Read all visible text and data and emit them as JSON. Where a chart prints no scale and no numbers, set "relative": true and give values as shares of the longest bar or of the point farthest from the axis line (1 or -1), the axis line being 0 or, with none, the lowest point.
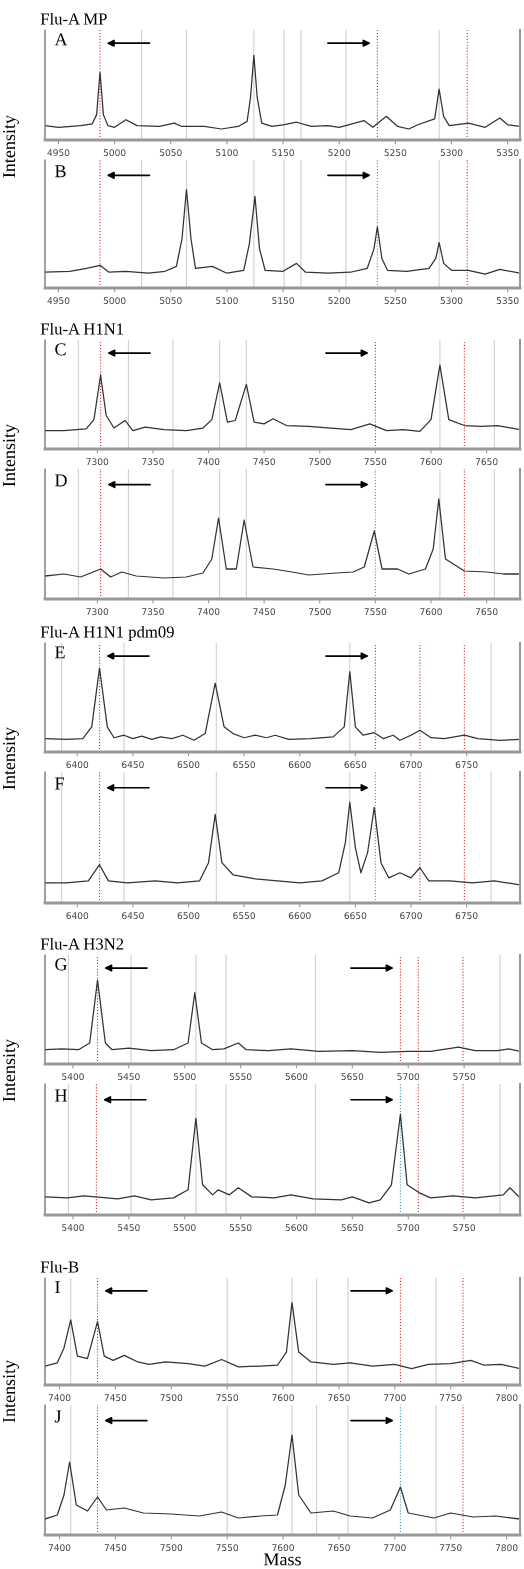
{
  "chart_data": [
    {
      "type": "line",
      "title": "Flu-A MP",
      "ylabel": "Intensity",
      "relative": true,
      "tick_labels": "x",
      "grid": false,
      "marker": "none",
      "line_style": "solid",
      "annotations": [
        "A"
      ],
      "xlim": [
        4938,
        5361
      ],
      "xticks": [
        4950,
        5000,
        5050,
        5100,
        5150,
        5200,
        5250,
        5300,
        5350
      ],
      "ref_lines": [
        {
          "axis": "x",
          "value": 4987,
          "color": "#d03030",
          "line_style": "dotted"
        },
        {
          "axis": "x",
          "value": 5234,
          "color": "#d03030",
          "line_style": "dotted"
        },
        {
          "axis": "x",
          "value": 5314,
          "color": "#d03030",
          "line_style": "dotted"
        },
        {
          "axis": "x",
          "value": 5024,
          "color": "#d0d0d0",
          "line_style": "solid"
        },
        {
          "axis": "x",
          "value": 5064,
          "color": "#d0d0d0",
          "line_style": "solid"
        },
        {
          "axis": "x",
          "value": 5124,
          "color": "#d0d0d0",
          "line_style": "solid"
        },
        {
          "axis": "x",
          "value": 5151,
          "color": "#d0d0d0",
          "line_style": "solid"
        },
        {
          "axis": "x",
          "value": 5166,
          "color": "#d0d0d0",
          "line_style": "solid"
        },
        {
          "axis": "x",
          "value": 5206,
          "color": "#d0d0d0",
          "line_style": "solid"
        },
        {
          "axis": "x",
          "value": 5289,
          "color": "#d0d0d0",
          "line_style": "solid"
        }
      ],
      "x": [
        4938,
        4950,
        4970,
        4980,
        4984,
        4987,
        4990,
        4994,
        5000,
        5010,
        5020,
        5040,
        5053,
        5060,
        5080,
        5095,
        5110,
        5118,
        5121,
        5124,
        5127,
        5131,
        5140,
        5150,
        5162,
        5175,
        5190,
        5200,
        5222,
        5230,
        5242,
        5252,
        5262,
        5270,
        5285,
        5289,
        5293,
        5298,
        5315,
        5330,
        5343,
        5350,
        5361
      ],
      "series": [
        {
          "color": "#333333",
          "values": [
            0.17,
            0.15,
            0.17,
            0.19,
            0.3,
            0.8,
            0.3,
            0.17,
            0.15,
            0.24,
            0.17,
            0.16,
            0.2,
            0.16,
            0.16,
            0.13,
            0.16,
            0.22,
            0.5,
            1.0,
            0.5,
            0.2,
            0.16,
            0.18,
            0.21,
            0.16,
            0.17,
            0.15,
            0.23,
            0.15,
            0.28,
            0.16,
            0.13,
            0.18,
            0.25,
            0.6,
            0.28,
            0.17,
            0.2,
            0.15,
            0.26,
            0.18,
            0.16
          ]
        }
      ]
    },
    {
      "type": "line",
      "relative": true,
      "tick_labels": "x",
      "grid": false,
      "marker": "none",
      "line_style": "solid",
      "annotations": [
        "B"
      ],
      "xlim": [
        4938,
        5361
      ],
      "xticks": [
        4950,
        5000,
        5050,
        5100,
        5150,
        5200,
        5250,
        5300,
        5350
      ],
      "ref_lines": [
        {
          "axis": "x",
          "value": 4987,
          "color": "#d03030",
          "line_style": "dotted"
        },
        {
          "axis": "x",
          "value": 5234,
          "color": "#40a0b0",
          "line_style": "dotted"
        },
        {
          "axis": "x",
          "value": 5314,
          "color": "#d03030",
          "line_style": "dotted"
        },
        {
          "axis": "x",
          "value": 5024,
          "color": "#d0d0d0",
          "line_style": "solid"
        },
        {
          "axis": "x",
          "value": 5064,
          "color": "#d0d0d0",
          "line_style": "solid"
        },
        {
          "axis": "x",
          "value": 5124,
          "color": "#d0d0d0",
          "line_style": "solid"
        },
        {
          "axis": "x",
          "value": 5151,
          "color": "#d0d0d0",
          "line_style": "solid"
        },
        {
          "axis": "x",
          "value": 5166,
          "color": "#d0d0d0",
          "line_style": "solid"
        },
        {
          "axis": "x",
          "value": 5206,
          "color": "#d0d0d0",
          "line_style": "solid"
        },
        {
          "axis": "x",
          "value": 5289,
          "color": "#d0d0d0",
          "line_style": "solid"
        }
      ],
      "x": [
        4938,
        4960,
        4975,
        4987,
        4995,
        5010,
        5030,
        5045,
        5055,
        5060,
        5064,
        5068,
        5072,
        5087,
        5100,
        5115,
        5120,
        5125,
        5129,
        5134,
        5150,
        5162,
        5170,
        5190,
        5210,
        5225,
        5231,
        5234,
        5238,
        5243,
        5260,
        5280,
        5286,
        5289,
        5293,
        5300,
        5315,
        5330,
        5343,
        5361
      ],
      "series": [
        {
          "color": "#333333",
          "values": [
            0.16,
            0.17,
            0.2,
            0.23,
            0.16,
            0.17,
            0.15,
            0.17,
            0.22,
            0.5,
            1.0,
            0.5,
            0.2,
            0.22,
            0.15,
            0.18,
            0.45,
            0.93,
            0.4,
            0.18,
            0.17,
            0.25,
            0.16,
            0.15,
            0.16,
            0.2,
            0.4,
            0.62,
            0.3,
            0.18,
            0.17,
            0.2,
            0.3,
            0.46,
            0.25,
            0.18,
            0.18,
            0.14,
            0.19,
            0.15
          ]
        }
      ]
    },
    {
      "type": "line",
      "title": "Flu-A H1N1",
      "ylabel": "Intensity",
      "relative": true,
      "tick_labels": "x",
      "grid": false,
      "marker": "none",
      "line_style": "solid",
      "annotations": [
        "C"
      ],
      "xlim": [
        7253,
        7680
      ],
      "xticks": [
        7300,
        7350,
        7400,
        7450,
        7500,
        7550,
        7600,
        7650
      ],
      "ref_lines": [
        {
          "axis": "x",
          "value": 7303,
          "color": "#d03030",
          "line_style": "dotted"
        },
        {
          "axis": "x",
          "value": 7550,
          "color": "#d03030",
          "line_style": "dotted"
        },
        {
          "axis": "x",
          "value": 7630,
          "color": "#d03030",
          "line_style": "dotted"
        },
        {
          "axis": "x",
          "value": 7283,
          "color": "#d0d0d0",
          "line_style": "solid"
        },
        {
          "axis": "x",
          "value": 7328,
          "color": "#d0d0d0",
          "line_style": "solid"
        },
        {
          "axis": "x",
          "value": 7368,
          "color": "#d0d0d0",
          "line_style": "solid"
        },
        {
          "axis": "x",
          "value": 7410,
          "color": "#d0d0d0",
          "line_style": "solid"
        },
        {
          "axis": "x",
          "value": 7434,
          "color": "#d0d0d0",
          "line_style": "solid"
        },
        {
          "axis": "x",
          "value": 7608,
          "color": "#d0d0d0",
          "line_style": "solid"
        },
        {
          "axis": "x",
          "value": 7657,
          "color": "#d0d0d0",
          "line_style": "solid"
        }
      ],
      "x": [
        7253,
        7270,
        7290,
        7297,
        7303,
        7308,
        7315,
        7325,
        7332,
        7343,
        7360,
        7380,
        7395,
        7403,
        7410,
        7417,
        7424,
        7434,
        7441,
        7450,
        7458,
        7470,
        7490,
        7510,
        7528,
        7545,
        7560,
        7575,
        7590,
        7600,
        7608,
        7616,
        7630,
        7645,
        7660,
        7680
      ],
      "series": [
        {
          "color": "#333333",
          "values": [
            0.22,
            0.22,
            0.24,
            0.35,
            0.88,
            0.4,
            0.25,
            0.34,
            0.22,
            0.26,
            0.23,
            0.22,
            0.25,
            0.35,
            0.79,
            0.32,
            0.34,
            0.77,
            0.32,
            0.3,
            0.36,
            0.28,
            0.27,
            0.25,
            0.23,
            0.3,
            0.22,
            0.23,
            0.21,
            0.35,
            1.0,
            0.35,
            0.28,
            0.27,
            0.28,
            0.23
          ]
        }
      ]
    },
    {
      "type": "line",
      "relative": true,
      "tick_labels": "x",
      "grid": false,
      "marker": "none",
      "line_style": "solid",
      "annotations": [
        "D"
      ],
      "xlim": [
        7253,
        7680
      ],
      "xticks": [
        7300,
        7350,
        7400,
        7450,
        7500,
        7550,
        7600,
        7650
      ],
      "ref_lines": [
        {
          "axis": "x",
          "value": 7303,
          "color": "#d03030",
          "line_style": "dotted"
        },
        {
          "axis": "x",
          "value": 7550,
          "color": "#40a0b0",
          "line_style": "dotted"
        },
        {
          "axis": "x",
          "value": 7630,
          "color": "#d03030",
          "line_style": "dotted"
        },
        {
          "axis": "x",
          "value": 7283,
          "color": "#d0d0d0",
          "line_style": "solid"
        },
        {
          "axis": "x",
          "value": 7328,
          "color": "#d0d0d0",
          "line_style": "solid"
        },
        {
          "axis": "x",
          "value": 7368,
          "color": "#d0d0d0",
          "line_style": "solid"
        },
        {
          "axis": "x",
          "value": 7410,
          "color": "#d0d0d0",
          "line_style": "solid"
        },
        {
          "axis": "x",
          "value": 7434,
          "color": "#d0d0d0",
          "line_style": "solid"
        },
        {
          "axis": "x",
          "value": 7608,
          "color": "#d0d0d0",
          "line_style": "solid"
        },
        {
          "axis": "x",
          "value": 7657,
          "color": "#d0d0d0",
          "line_style": "solid"
        }
      ],
      "x": [
        7253,
        7270,
        7285,
        7303,
        7312,
        7322,
        7335,
        7360,
        7380,
        7395,
        7403,
        7409,
        7416,
        7425,
        7432,
        7440,
        7458,
        7475,
        7490,
        7515,
        7530,
        7540,
        7549,
        7556,
        7570,
        7580,
        7595,
        7602,
        7607,
        7613,
        7630,
        7650,
        7665,
        7680
      ],
      "series": [
        {
          "color": "#333333",
          "values": [
            0.23,
            0.25,
            0.22,
            0.3,
            0.22,
            0.27,
            0.23,
            0.21,
            0.22,
            0.26,
            0.4,
            0.81,
            0.3,
            0.3,
            0.79,
            0.32,
            0.3,
            0.27,
            0.24,
            0.26,
            0.27,
            0.32,
            0.68,
            0.3,
            0.3,
            0.25,
            0.3,
            0.5,
            1.0,
            0.4,
            0.28,
            0.27,
            0.25,
            0.25
          ]
        }
      ]
    },
    {
      "type": "line",
      "title": "Flu-A H1N1 pdm09",
      "ylabel": "Intensity",
      "relative": true,
      "tick_labels": "x",
      "grid": false,
      "marker": "none",
      "line_style": "solid",
      "annotations": [
        "E"
      ],
      "xlim": [
        6371,
        6798
      ],
      "xticks": [
        6400,
        6450,
        6500,
        6550,
        6600,
        6650,
        6700,
        6750
      ],
      "ref_lines": [
        {
          "axis": "x",
          "value": 6420,
          "color": "#d03030",
          "line_style": "dotted"
        },
        {
          "axis": "x",
          "value": 6668,
          "color": "#d03030",
          "line_style": "dotted"
        },
        {
          "axis": "x",
          "value": 6708,
          "color": "#d03030",
          "line_style": "dotted"
        },
        {
          "axis": "x",
          "value": 6748,
          "color": "#d03030",
          "line_style": "dotted"
        },
        {
          "axis": "x",
          "value": 6386,
          "color": "#d0d0d0",
          "line_style": "solid"
        },
        {
          "axis": "x",
          "value": 6442,
          "color": "#d0d0d0",
          "line_style": "solid"
        },
        {
          "axis": "x",
          "value": 6525,
          "color": "#d0d0d0",
          "line_style": "solid"
        },
        {
          "axis": "x",
          "value": 6645,
          "color": "#d0d0d0",
          "line_style": "solid"
        },
        {
          "axis": "x",
          "value": 6772,
          "color": "#d0d0d0",
          "line_style": "solid"
        }
      ],
      "x": [
        6371,
        6390,
        6405,
        6413,
        6420,
        6427,
        6433,
        6442,
        6450,
        6458,
        6467,
        6475,
        6485,
        6495,
        6505,
        6515,
        6524,
        6532,
        6540,
        6550,
        6560,
        6570,
        6578,
        6590,
        6610,
        6630,
        6640,
        6645,
        6650,
        6657,
        6667,
        6675,
        6684,
        6690,
        6700,
        6708,
        6718,
        6730,
        6748,
        6760,
        6780,
        6798
      ],
      "series": [
        {
          "color": "#333333",
          "values": [
            0.16,
            0.15,
            0.16,
            0.3,
            1.0,
            0.3,
            0.17,
            0.2,
            0.16,
            0.19,
            0.15,
            0.18,
            0.16,
            0.2,
            0.14,
            0.22,
            0.82,
            0.3,
            0.22,
            0.17,
            0.2,
            0.17,
            0.2,
            0.15,
            0.16,
            0.18,
            0.3,
            0.96,
            0.3,
            0.2,
            0.23,
            0.16,
            0.2,
            0.14,
            0.2,
            0.26,
            0.17,
            0.16,
            0.2,
            0.16,
            0.14,
            0.15
          ]
        }
      ]
    },
    {
      "type": "line",
      "relative": true,
      "tick_labels": "x",
      "grid": false,
      "marker": "none",
      "line_style": "solid",
      "annotations": [
        "F"
      ],
      "xlim": [
        6371,
        6798
      ],
      "xticks": [
        6400,
        6450,
        6500,
        6550,
        6600,
        6650,
        6700,
        6750
      ],
      "ref_lines": [
        {
          "axis": "x",
          "value": 6420,
          "color": "#d03030",
          "line_style": "dotted"
        },
        {
          "axis": "x",
          "value": 6668,
          "color": "#40a0b0",
          "line_style": "dotted"
        },
        {
          "axis": "x",
          "value": 6708,
          "color": "#d03030",
          "line_style": "dotted"
        },
        {
          "axis": "x",
          "value": 6748,
          "color": "#d03030",
          "line_style": "dotted"
        },
        {
          "axis": "x",
          "value": 6386,
          "color": "#d0d0d0",
          "line_style": "solid"
        },
        {
          "axis": "x",
          "value": 6442,
          "color": "#d0d0d0",
          "line_style": "solid"
        },
        {
          "axis": "x",
          "value": 6525,
          "color": "#d0d0d0",
          "line_style": "solid"
        },
        {
          "axis": "x",
          "value": 6645,
          "color": "#d0d0d0",
          "line_style": "solid"
        },
        {
          "axis": "x",
          "value": 6772,
          "color": "#d0d0d0",
          "line_style": "solid"
        }
      ],
      "x": [
        6371,
        6390,
        6410,
        6420,
        6428,
        6445,
        6470,
        6490,
        6510,
        6518,
        6524,
        6530,
        6540,
        6560,
        6580,
        6600,
        6620,
        6635,
        6641,
        6645,
        6650,
        6655,
        6661,
        6667,
        6673,
        6680,
        6690,
        6700,
        6708,
        6716,
        6735,
        6755,
        6775,
        6798
      ],
      "series": [
        {
          "color": "#333333",
          "values": [
            0.2,
            0.2,
            0.22,
            0.38,
            0.22,
            0.2,
            0.22,
            0.2,
            0.22,
            0.4,
            0.88,
            0.4,
            0.28,
            0.24,
            0.22,
            0.2,
            0.22,
            0.3,
            0.6,
            1.0,
            0.55,
            0.3,
            0.5,
            0.95,
            0.4,
            0.25,
            0.3,
            0.25,
            0.35,
            0.22,
            0.22,
            0.2,
            0.22,
            0.18
          ]
        }
      ]
    },
    {
      "type": "line",
      "title": "Flu-A H3N2",
      "ylabel": "Intensity",
      "relative": true,
      "tick_labels": "x",
      "grid": false,
      "marker": "none",
      "line_style": "solid",
      "annotations": [
        "G"
      ],
      "xlim": [
        5375,
        5800
      ],
      "xticks": [
        5400,
        5450,
        5500,
        5550,
        5600,
        5650,
        5700,
        5750
      ],
      "ref_lines": [
        {
          "axis": "x",
          "value": 5422,
          "color": "#d03030",
          "line_style": "dotted"
        },
        {
          "axis": "x",
          "value": 5693,
          "color": "#d03030",
          "line_style": "dotted"
        },
        {
          "axis": "x",
          "value": 5709,
          "color": "#d03030",
          "line_style": "dotted"
        },
        {
          "axis": "x",
          "value": 5749,
          "color": "#d03030",
          "line_style": "dotted"
        },
        {
          "axis": "x",
          "value": 5396,
          "color": "#d0d0d0",
          "line_style": "solid"
        },
        {
          "axis": "x",
          "value": 5452,
          "color": "#d0d0d0",
          "line_style": "solid"
        },
        {
          "axis": "x",
          "value": 5510,
          "color": "#d0d0d0",
          "line_style": "solid"
        },
        {
          "axis": "x",
          "value": 5537,
          "color": "#d0d0d0",
          "line_style": "solid"
        },
        {
          "axis": "x",
          "value": 5617,
          "color": "#d0d0d0",
          "line_style": "solid"
        },
        {
          "axis": "x",
          "value": 5782,
          "color": "#d0d0d0",
          "line_style": "solid"
        }
      ],
      "x": [
        5375,
        5390,
        5405,
        5415,
        5422,
        5429,
        5435,
        5450,
        5470,
        5490,
        5503,
        5509,
        5515,
        5525,
        5535,
        5548,
        5555,
        5575,
        5595,
        5620,
        5650,
        5675,
        5700,
        5720,
        5745,
        5760,
        5780,
        5790,
        5800
      ],
      "series": [
        {
          "color": "#333333",
          "values": [
            0.17,
            0.18,
            0.17,
            0.25,
            1.0,
            0.25,
            0.17,
            0.19,
            0.16,
            0.17,
            0.25,
            0.85,
            0.25,
            0.17,
            0.18,
            0.25,
            0.17,
            0.16,
            0.18,
            0.15,
            0.16,
            0.14,
            0.15,
            0.15,
            0.2,
            0.16,
            0.16,
            0.18,
            0.15
          ]
        }
      ]
    },
    {
      "type": "line",
      "relative": true,
      "tick_labels": "x",
      "grid": false,
      "marker": "none",
      "line_style": "solid",
      "annotations": [
        "H"
      ],
      "xlim": [
        5375,
        5800
      ],
      "xticks": [
        5400,
        5450,
        5500,
        5550,
        5600,
        5650,
        5700,
        5750
      ],
      "ref_lines": [
        {
          "axis": "x",
          "value": 5421,
          "color": "#d03030",
          "line_style": "dotted"
        },
        {
          "axis": "x",
          "value": 5693,
          "color": "#40a0b0",
          "line_style": "dotted"
        },
        {
          "axis": "x",
          "value": 5709,
          "color": "#d03030",
          "line_style": "dotted"
        },
        {
          "axis": "x",
          "value": 5749,
          "color": "#d03030",
          "line_style": "dotted"
        },
        {
          "axis": "x",
          "value": 5396,
          "color": "#d0d0d0",
          "line_style": "solid"
        },
        {
          "axis": "x",
          "value": 5452,
          "color": "#d0d0d0",
          "line_style": "solid"
        },
        {
          "axis": "x",
          "value": 5510,
          "color": "#d0d0d0",
          "line_style": "solid"
        },
        {
          "axis": "x",
          "value": 5537,
          "color": "#d0d0d0",
          "line_style": "solid"
        },
        {
          "axis": "x",
          "value": 5617,
          "color": "#d0d0d0",
          "line_style": "solid"
        },
        {
          "axis": "x",
          "value": 5782,
          "color": "#d0d0d0",
          "line_style": "solid"
        }
      ],
      "x": [
        5375,
        5395,
        5410,
        5420,
        5440,
        5455,
        5470,
        5490,
        5503,
        5510,
        5516,
        5525,
        5530,
        5540,
        5548,
        5560,
        5580,
        5595,
        5615,
        5640,
        5650,
        5665,
        5675,
        5685,
        5693,
        5699,
        5710,
        5720,
        5740,
        5760,
        5785,
        5791,
        5800
      ],
      "series": [
        {
          "color": "#333333",
          "values": [
            0.18,
            0.17,
            0.19,
            0.18,
            0.16,
            0.19,
            0.15,
            0.17,
            0.25,
            0.96,
            0.3,
            0.2,
            0.25,
            0.2,
            0.27,
            0.18,
            0.17,
            0.2,
            0.16,
            0.15,
            0.18,
            0.12,
            0.15,
            0.3,
            1.0,
            0.3,
            0.22,
            0.17,
            0.19,
            0.17,
            0.2,
            0.27,
            0.17
          ]
        }
      ]
    },
    {
      "type": "line",
      "title": "Flu-B",
      "ylabel": "Intensity",
      "relative": true,
      "tick_labels": "x",
      "grid": false,
      "marker": "none",
      "line_style": "solid",
      "annotations": [
        "I"
      ],
      "xlim": [
        7387,
        7812
      ],
      "xticks": [
        7400,
        7450,
        7500,
        7550,
        7600,
        7650,
        7700,
        7750,
        7800
      ],
      "ref_lines": [
        {
          "axis": "x",
          "value": 7434,
          "color": "#d03030",
          "line_style": "dotted"
        },
        {
          "axis": "x",
          "value": 7705,
          "color": "#d03030",
          "line_style": "dotted"
        },
        {
          "axis": "x",
          "value": 7761,
          "color": "#d03030",
          "line_style": "dotted"
        },
        {
          "axis": "x",
          "value": 7410,
          "color": "#d0d0d0",
          "line_style": "solid"
        },
        {
          "axis": "x",
          "value": 7550,
          "color": "#d0d0d0",
          "line_style": "solid"
        },
        {
          "axis": "x",
          "value": 7608,
          "color": "#d0d0d0",
          "line_style": "solid"
        },
        {
          "axis": "x",
          "value": 7630,
          "color": "#d0d0d0",
          "line_style": "solid"
        },
        {
          "axis": "x",
          "value": 7658,
          "color": "#d0d0d0",
          "line_style": "solid"
        },
        {
          "axis": "x",
          "value": 7737,
          "color": "#d0d0d0",
          "line_style": "solid"
        }
      ],
      "x": [
        7387,
        7398,
        7404,
        7410,
        7416,
        7425,
        7434,
        7440,
        7448,
        7458,
        7470,
        7480,
        7495,
        7515,
        7530,
        7545,
        7560,
        7580,
        7595,
        7603,
        7608,
        7614,
        7625,
        7645,
        7660,
        7680,
        7700,
        7715,
        7730,
        7750,
        7768,
        7780,
        7795,
        7812
      ],
      "series": [
        {
          "color": "#333333",
          "values": [
            0.23,
            0.27,
            0.45,
            0.79,
            0.35,
            0.32,
            0.77,
            0.35,
            0.3,
            0.36,
            0.28,
            0.25,
            0.28,
            0.26,
            0.23,
            0.31,
            0.22,
            0.23,
            0.24,
            0.4,
            1.0,
            0.4,
            0.28,
            0.25,
            0.27,
            0.23,
            0.25,
            0.2,
            0.25,
            0.26,
            0.3,
            0.24,
            0.25,
            0.2
          ]
        }
      ]
    },
    {
      "type": "line",
      "xlabel": "Mass",
      "relative": true,
      "tick_labels": "x",
      "grid": false,
      "marker": "none",
      "line_style": "solid",
      "annotations": [
        "J"
      ],
      "xlim": [
        7387,
        7812
      ],
      "xticks": [
        7400,
        7450,
        7500,
        7550,
        7600,
        7650,
        7700,
        7750,
        7800
      ],
      "ref_lines": [
        {
          "axis": "x",
          "value": 7434,
          "color": "#d03030",
          "line_style": "dotted"
        },
        {
          "axis": "x",
          "value": 7705,
          "color": "#40a0b0",
          "line_style": "dotted"
        },
        {
          "axis": "x",
          "value": 7761,
          "color": "#d03030",
          "line_style": "dotted"
        },
        {
          "axis": "x",
          "value": 7410,
          "color": "#d0d0d0",
          "line_style": "solid"
        },
        {
          "axis": "x",
          "value": 7550,
          "color": "#d0d0d0",
          "line_style": "solid"
        },
        {
          "axis": "x",
          "value": 7608,
          "color": "#d0d0d0",
          "line_style": "solid"
        },
        {
          "axis": "x",
          "value": 7630,
          "color": "#d0d0d0",
          "line_style": "solid"
        },
        {
          "axis": "x",
          "value": 7658,
          "color": "#d0d0d0",
          "line_style": "solid"
        },
        {
          "axis": "x",
          "value": 7737,
          "color": "#d0d0d0",
          "line_style": "solid"
        }
      ],
      "x": [
        7387,
        7398,
        7404,
        7409,
        7415,
        7425,
        7434,
        7442,
        7458,
        7475,
        7500,
        7525,
        7545,
        7560,
        7580,
        7595,
        7602,
        7608,
        7614,
        7625,
        7645,
        7660,
        7680,
        7696,
        7705,
        7712,
        7735,
        7750,
        7770,
        7790,
        7812
      ],
      "series": [
        {
          "color": "#333333",
          "values": [
            0.16,
            0.2,
            0.4,
            0.73,
            0.3,
            0.24,
            0.38,
            0.25,
            0.27,
            0.22,
            0.21,
            0.19,
            0.23,
            0.17,
            0.19,
            0.2,
            0.5,
            1.0,
            0.4,
            0.22,
            0.24,
            0.19,
            0.17,
            0.25,
            0.48,
            0.22,
            0.17,
            0.22,
            0.18,
            0.19,
            0.16
          ]
        }
      ]
    }
  ]
}
